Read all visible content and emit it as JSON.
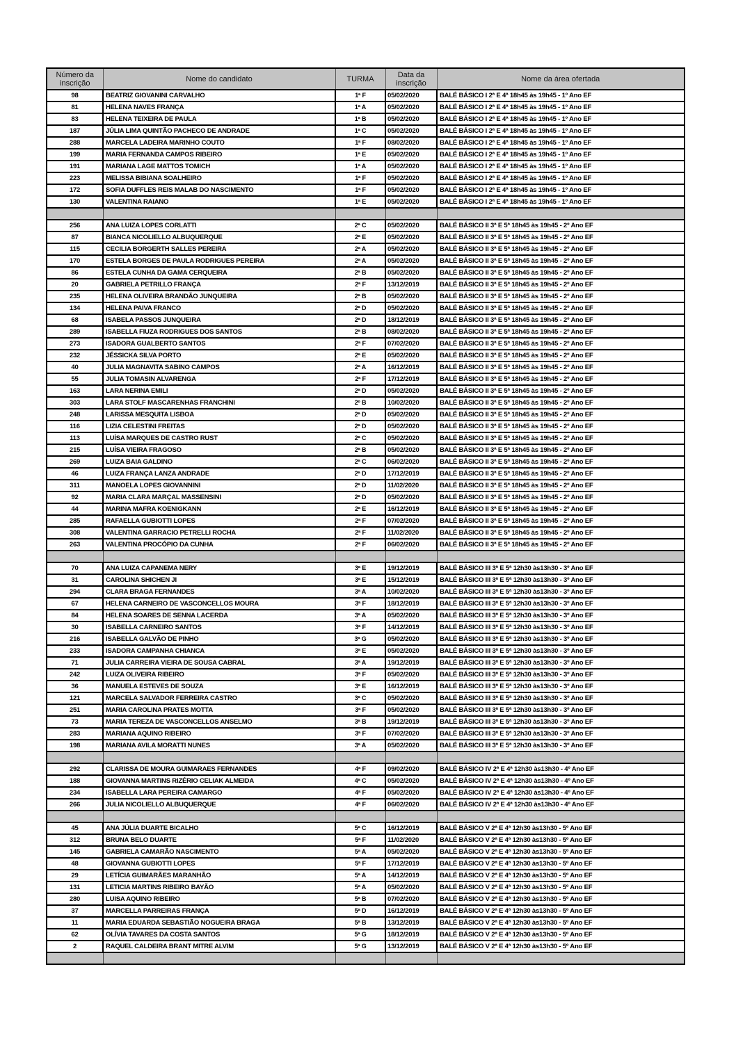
{
  "document": {
    "type": "lista de inscrições",
    "colors": {
      "header_bg": "#c4c4c4",
      "separator_bg": "#c4c4c4",
      "row_bg": "#ffffff",
      "border": "#000000"
    }
  },
  "header": {
    "columns": [
      "Número da inscrição",
      "Nome do candidato",
      "TURMA",
      "Data da inscrição",
      "Nome da área ofertada"
    ]
  },
  "sections": [
    {
      "area": "BALÉ BÁSICO I 2ª E 4ª 18h45 às 19h45 - 1º Ano EF",
      "rows": [
        {
          "numero": "98",
          "nome": "BEATRIZ GIOVANINI CARVALHO",
          "turma": "1ª F",
          "data": "05/02/2020"
        },
        {
          "numero": "81",
          "nome": "HELENA NAVES FRANÇA",
          "turma": "1ª A",
          "data": "05/02/2020"
        },
        {
          "numero": "83",
          "nome": "HELENA TEIXEIRA DE PAULA",
          "turma": "1ª B",
          "data": "05/02/2020"
        },
        {
          "numero": "187",
          "nome": "JÚLIA LIMA QUINTÃO PACHECO DE ANDRADE",
          "turma": "1ª C",
          "data": "05/02/2020"
        },
        {
          "numero": "288",
          "nome": "MARCELA LADEIRA MARINHO COUTO",
          "turma": "1ª F",
          "data": "08/02/2020"
        },
        {
          "numero": "199",
          "nome": "MARIA FERNANDA CAMPOS RIBEIRO",
          "turma": "1ª E",
          "data": "05/02/2020"
        },
        {
          "numero": "191",
          "nome": "MARIANA LAGE MATTOS TOMICH",
          "turma": "1ª A",
          "data": "05/02/2020"
        },
        {
          "numero": "223",
          "nome": "MELISSA BIBIANA SOALHEIRO",
          "turma": "1ª F",
          "data": "05/02/2020"
        },
        {
          "numero": "172",
          "nome": "SOFIA  DUFFLES REIS MALAB DO NASCIMENTO",
          "turma": "1ª F",
          "data": "05/02/2020"
        },
        {
          "numero": "130",
          "nome": "VALENTINA RAIANO",
          "turma": "1ª E",
          "data": "05/02/2020"
        }
      ]
    },
    {
      "area": "BALÉ BÁSICO II 3ª E 5ª 18h45 às 19h45 - 2º Ano EF",
      "rows": [
        {
          "numero": "256",
          "nome": "ANA LUIZA LOPES CORLATTI",
          "turma": "2ª C",
          "data": "05/02/2020"
        },
        {
          "numero": "87",
          "nome": "BIANCA NICOLIELLO ALBUQUERQUE",
          "turma": "2ª E",
          "data": "05/02/2020"
        },
        {
          "numero": "115",
          "nome": "CECILIA BORGERTH SALLES PEREIRA",
          "turma": "2ª A",
          "data": "05/02/2020"
        },
        {
          "numero": "170",
          "nome": "ESTELA BORGES DE PAULA RODRIGUES PEREIRA",
          "turma": "2ª A",
          "data": "05/02/2020"
        },
        {
          "numero": "86",
          "nome": "ESTELA CUNHA DA GAMA CERQUEIRA",
          "turma": "2ª B",
          "data": "05/02/2020"
        },
        {
          "numero": "20",
          "nome": "GABRIELA PETRILLO FRANÇA",
          "turma": "2ª F",
          "data": "13/12/2019"
        },
        {
          "numero": "235",
          "nome": "HELENA OLIVEIRA BRANDÃO JUNQUEIRA",
          "turma": "2ª B",
          "data": "05/02/2020"
        },
        {
          "numero": "134",
          "nome": "HELENA PAIVA FRANCO",
          "turma": "2ª D",
          "data": "05/02/2020"
        },
        {
          "numero": "68",
          "nome": "ISABELA PASSOS JUNQUEIRA",
          "turma": "2ª D",
          "data": "18/12/2019"
        },
        {
          "numero": "289",
          "nome": "ISABELLA FIUZA RODRIGUES DOS SANTOS",
          "turma": "2ª B",
          "data": "08/02/2020"
        },
        {
          "numero": "273",
          "nome": "ISADORA GUALBERTO SANTOS",
          "turma": "2ª F",
          "data": "07/02/2020"
        },
        {
          "numero": "232",
          "nome": "JÉSSICKA SILVA PORTO",
          "turma": "2ª E",
          "data": "05/02/2020"
        },
        {
          "numero": "40",
          "nome": "JULIA MAGNAVITA SABINO CAMPOS",
          "turma": "2ª A",
          "data": "16/12/2019"
        },
        {
          "numero": "55",
          "nome": "JULIA TOMASIN ALVARENGA",
          "turma": "2ª F",
          "data": "17/12/2019"
        },
        {
          "numero": "163",
          "nome": "LARA NERINA EMILI",
          "turma": "2ª D",
          "data": "05/02/2020"
        },
        {
          "numero": "303",
          "nome": "LARA STOLF MASCARENHAS FRANCHINI",
          "turma": "2º B",
          "data": "10/02/2020"
        },
        {
          "numero": "248",
          "nome": "LARISSA MESQUITA LISBOA",
          "turma": "2ª D",
          "data": "05/02/2020"
        },
        {
          "numero": "116",
          "nome": "LIZIA CELESTINI FREITAS",
          "turma": "2ª D",
          "data": "05/02/2020"
        },
        {
          "numero": "113",
          "nome": "LUÍSA MARQUES DE CASTRO RUST",
          "turma": "2ª C",
          "data": "05/02/2020"
        },
        {
          "numero": "215",
          "nome": "LUÍSA VIEIRA FRAGOSO",
          "turma": "2ª B",
          "data": "05/02/2020"
        },
        {
          "numero": "269",
          "nome": "LUIZA BAIA GALDINO",
          "turma": "2ª C",
          "data": "06/02/2020"
        },
        {
          "numero": "46",
          "nome": "LUIZA FRANÇA LANZA ANDRADE",
          "turma": "2ª D",
          "data": "17/12/2019"
        },
        {
          "numero": "311",
          "nome": "MANOELA LOPES GIOVANNINI",
          "turma": "2ª D",
          "data": "11/02/2020"
        },
        {
          "numero": "92",
          "nome": "MARIA CLARA MARÇAL MASSENSINI",
          "turma": "2ª D",
          "data": "05/02/2020"
        },
        {
          "numero": "44",
          "nome": "MARINA MAFRA KOENIGKANN",
          "turma": "2ª E",
          "data": "16/12/2019"
        },
        {
          "numero": "285",
          "nome": "RAFAELLA GUBIOTTI LOPES",
          "turma": "2ª F",
          "data": "07/02/2020"
        },
        {
          "numero": "308",
          "nome": "VALENTINA GARRACIO PETRELLI ROCHA",
          "turma": "2ª F",
          "data": "11/02/2020"
        },
        {
          "numero": "263",
          "nome": "VALENTINA PROCÓPIO DA CUNHA",
          "turma": "2ª F",
          "data": "06/02/2020"
        }
      ]
    },
    {
      "area": "BALÉ BÁSICO III 3ª E 5ª 12h30 às13h30 - 3º Ano EF",
      "rows": [
        {
          "numero": "70",
          "nome": "ANA LUIZA CAPANEMA NERY",
          "turma": "3ª E",
          "data": "19/12/2019"
        },
        {
          "numero": "31",
          "nome": "CAROLINA SHICHEN JI",
          "turma": "3ª E",
          "data": "15/12/2019"
        },
        {
          "numero": "294",
          "nome": "CLARA BRAGA FERNANDES",
          "turma": "3ª A",
          "data": "10/02/2020"
        },
        {
          "numero": "67",
          "nome": "HELENA CARNEIRO DE VASCONCELLOS MOURA",
          "turma": "3ª F",
          "data": "18/12/2019"
        },
        {
          "numero": "84",
          "nome": "HELENA SOARES DE SENNA LACERDA",
          "turma": "3ª A",
          "data": "05/02/2020"
        },
        {
          "numero": "30",
          "nome": "ISABELLA CARNEIRO SANTOS",
          "turma": "3ª F",
          "data": "14/12/2019"
        },
        {
          "numero": "216",
          "nome": "ISABELLA GALVÃO DE PINHO",
          "turma": "3ª G",
          "data": "05/02/2020"
        },
        {
          "numero": "233",
          "nome": "ISADORA CAMPANHA CHIANCA",
          "turma": "3ª E",
          "data": "05/02/2020"
        },
        {
          "numero": "71",
          "nome": "JULIA CARREIRA VIEIRA DE SOUSA CABRAL",
          "turma": "3ª A",
          "data": "19/12/2019"
        },
        {
          "numero": "242",
          "nome": "LUIZA OLIVEIRA RIBEIRO",
          "turma": "3ª F",
          "data": "05/02/2020"
        },
        {
          "numero": "36",
          "nome": "MANUELA ESTEVES DE SOUZA",
          "turma": "3ª E",
          "data": "16/12/2019"
        },
        {
          "numero": "121",
          "nome": "MARCELA SALVADOR FERREIRA CASTRO",
          "turma": "3ª C",
          "data": "05/02/2020"
        },
        {
          "numero": "251",
          "nome": "MARIA CAROLINA PRATES MOTTA",
          "turma": "3ª F",
          "data": "05/02/2020"
        },
        {
          "numero": "73",
          "nome": "MARIA TEREZA DE VASCONCELLOS ANSELMO",
          "turma": "3ª B",
          "data": "19/12/2019"
        },
        {
          "numero": "283",
          "nome": "MARIANA AQUINO RIBEIRO",
          "turma": "3ª F",
          "data": "07/02/2020"
        },
        {
          "numero": "198",
          "nome": "MARIANA AVILA MORATTI NUNES",
          "turma": "3ª A",
          "data": "05/02/2020"
        }
      ]
    },
    {
      "area": "BALÉ BÁSICO IV 2ª E 4ª 12h30 às13h30 - 4º Ano EF",
      "rows": [
        {
          "numero": "292",
          "nome": "CLARISSA DE MOURA GUIMARAES FERNANDES",
          "turma": "4ª F",
          "data": "09/02/2020"
        },
        {
          "numero": "188",
          "nome": "GIOVANNA MARTINS RIZÉRIO CELIAK ALMEIDA",
          "turma": "4ª C",
          "data": "05/02/2020"
        },
        {
          "numero": "234",
          "nome": "ISABELLA LARA PEREIRA CAMARGO",
          "turma": "4ª F",
          "data": "05/02/2020"
        },
        {
          "numero": "266",
          "nome": "JULIA NICOLIELLO ALBUQUERQUE",
          "turma": "4ª F",
          "data": "06/02/2020"
        }
      ]
    },
    {
      "area": "BALÉ BÁSICO V 2ª E 4ª 12h30 às13h30 - 5º Ano EF",
      "rows": [
        {
          "numero": "45",
          "nome": "ANA JÚLIA DUARTE BICALHO",
          "turma": "5ª C",
          "data": "16/12/2019"
        },
        {
          "numero": "312",
          "nome": "BRUNA BELO DUARTE",
          "turma": "5ª F",
          "data": "11/02/2020"
        },
        {
          "numero": "145",
          "nome": "GABRIELA CAMARÃO NASCIMENTO",
          "turma": "5ª A",
          "data": "05/02/2020"
        },
        {
          "numero": "48",
          "nome": "GIOVANNA GUBIOTTI LOPES",
          "turma": "5ª F",
          "data": "17/12/2019"
        },
        {
          "numero": "29",
          "nome": "LETÍCIA GUIMARÃES MARANHÃO",
          "turma": "5ª A",
          "data": "14/12/2019"
        },
        {
          "numero": "131",
          "nome": "LETICIA MARTINS RIBEIRO BAYÃO",
          "turma": "5ª A",
          "data": "05/02/2020"
        },
        {
          "numero": "280",
          "nome": "LUISA AQUINO RIBEIRO",
          "turma": "5ª B",
          "data": "07/02/2020"
        },
        {
          "numero": "37",
          "nome": "MARCELLA PARREIRAS FRANÇA",
          "turma": "5ª D",
          "data": "16/12/2019"
        },
        {
          "numero": "11",
          "nome": "MARIA EDUARDA SEBASTIÃO NOGUEIRA BRAGA",
          "turma": "5ª B",
          "data": "13/12/2019"
        },
        {
          "numero": "62",
          "nome": "OLÍVIA TAVARES DA COSTA SANTOS",
          "turma": "5ª G",
          "data": "18/12/2019"
        },
        {
          "numero": "2",
          "nome": "RAQUEL CALDEIRA BRANT MITRE ALVIM",
          "turma": "5ª G",
          "data": "13/12/2019"
        }
      ]
    }
  ]
}
